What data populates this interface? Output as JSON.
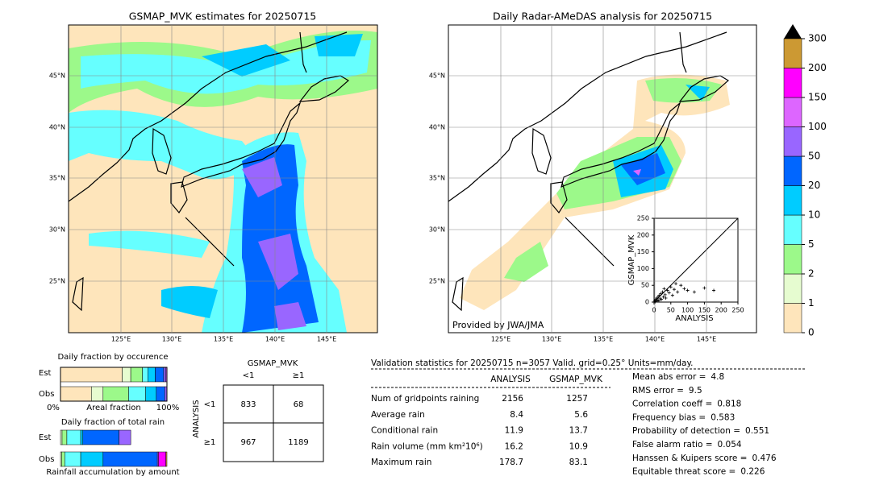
{
  "maps": [
    {
      "title": "GSMAP_MVK estimates for 20250715"
    },
    {
      "title": "Daily Radar-AMeDAS analysis for 20250715",
      "credit": "Provided by JWA/JMA"
    }
  ],
  "lat_labels": [
    "45°N",
    "40°N",
    "35°N",
    "30°N",
    "25°N"
  ],
  "lon_labels": [
    "125°E",
    "130°E",
    "135°E",
    "140°E",
    "145°E"
  ],
  "colorbar": {
    "levels": [
      0,
      1,
      2,
      5,
      10,
      20,
      50,
      100,
      150,
      200,
      300
    ],
    "colors": [
      "#fee5bb",
      "#e6fcd0",
      "#9cf98a",
      "#66ffff",
      "#00ccff",
      "#0066ff",
      "#9966ff",
      "#dd66ff",
      "#ff00ff",
      "#cc9933"
    ],
    "extend_color": "#000000"
  },
  "scatter": {
    "xlabel": "ANALYSIS",
    "ylabel": "GSMAP_MVK",
    "xlim": [
      0,
      250
    ],
    "ylim": [
      0,
      250
    ],
    "xticks": [
      0,
      50,
      100,
      150,
      200,
      250
    ],
    "yticks": [
      0,
      50,
      100,
      150,
      200,
      250
    ],
    "x": [
      2,
      4,
      5,
      7,
      8,
      10,
      12,
      14,
      15,
      18,
      20,
      22,
      25,
      28,
      30,
      33,
      35,
      40,
      45,
      50,
      55,
      60,
      65,
      70,
      80,
      90,
      100,
      120,
      150,
      178
    ],
    "y": [
      3,
      1,
      8,
      5,
      12,
      6,
      15,
      4,
      20,
      10,
      25,
      8,
      30,
      15,
      40,
      22,
      12,
      35,
      28,
      45,
      20,
      38,
      55,
      30,
      50,
      40,
      35,
      30,
      42,
      35
    ]
  },
  "fractions": {
    "occurrence_title": "Daily fraction by occurence",
    "total_title": "Daily fraction of total rain",
    "est": "Est",
    "obs": "Obs",
    "axis_min": "0%",
    "axis_label": "Areal fraction",
    "axis_max": "100%",
    "footer": "Rainfall accumulation by amount",
    "occurrence_est": [
      58,
      8,
      11,
      5,
      7,
      8,
      2,
      1,
      0,
      0
    ],
    "occurrence_obs": [
      29,
      11,
      24,
      16,
      10,
      8,
      2,
      0,
      0,
      0
    ],
    "total_est": [
      0,
      1.5,
      4.5,
      13,
      2,
      34,
      11,
      0,
      0,
      0
    ],
    "total_obs": [
      0,
      1,
      3,
      15,
      21,
      51,
      1,
      0,
      7,
      1
    ]
  },
  "contingency": {
    "title": "GSMAP_MVK",
    "columns": [
      "<1",
      "≥1"
    ],
    "ylabel": "ANALYSIS",
    "rows": [
      "<1",
      "≥1"
    ],
    "cells": [
      [
        833,
        68
      ],
      [
        967,
        1189
      ]
    ]
  },
  "validation": {
    "header": "Validation statistics for 20250715  n=3057 Valid. grid=0.25° Units=mm/day.",
    "columns": [
      "ANALYSIS",
      "GSMAP_MVK"
    ],
    "rows": [
      [
        "Num of gridpoints raining",
        2156,
        1257
      ],
      [
        "Average rain",
        8.4,
        5.6
      ],
      [
        "Conditional rain",
        11.9,
        13.7
      ],
      [
        "Rain volume (mm km²10⁶)",
        16.2,
        10.9
      ],
      [
        "Maximum rain",
        178.7,
        83.1
      ]
    ]
  },
  "scores": [
    [
      "Mean abs error =",
      4.8
    ],
    [
      "RMS error =",
      9.5
    ],
    [
      "Correlation coeff =",
      0.818
    ],
    [
      "Frequency bias =",
      0.583
    ],
    [
      "Probability of detection =",
      0.551
    ],
    [
      "False alarm ratio =",
      0.054
    ],
    [
      "Hanssen & Kuipers score =",
      0.476
    ],
    [
      "Equitable threat score =",
      0.226
    ]
  ]
}
